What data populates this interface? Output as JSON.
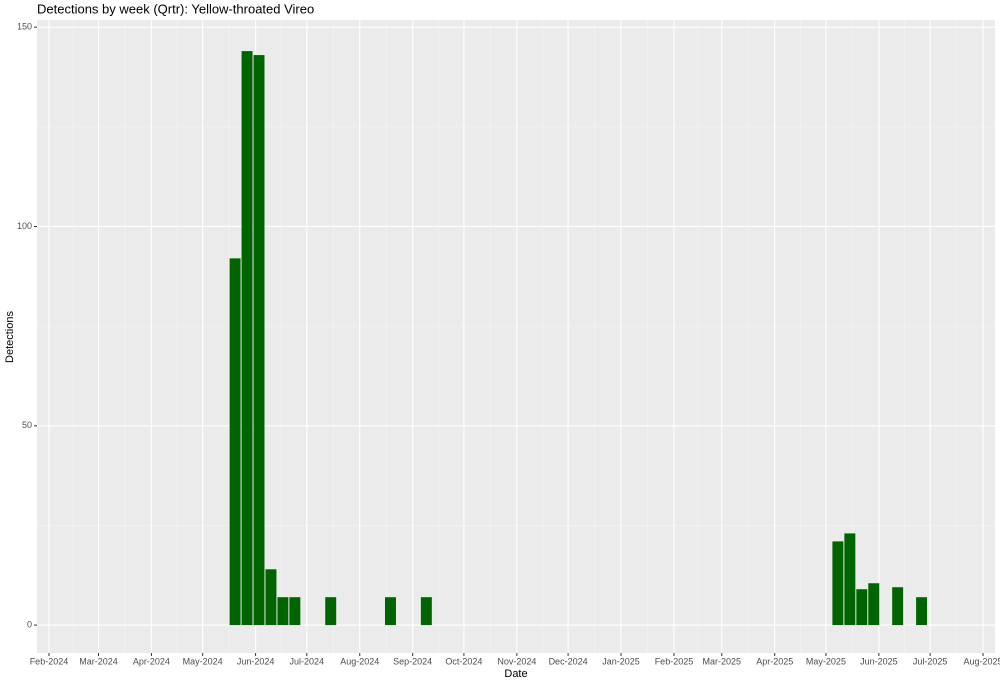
{
  "chart_data": {
    "type": "bar",
    "title": "Detections by week (Qrtr): Yellow-throated Vireo",
    "x_label": "Date",
    "y_label": "Detections",
    "color": "#006400",
    "grid": true,
    "x": [
      "2024-05-20",
      "2024-05-27",
      "2024-06-03",
      "2024-06-10",
      "2024-06-17",
      "2024-06-24",
      "2024-07-15",
      "2024-08-19",
      "2024-09-09",
      "2025-05-08",
      "2025-05-15",
      "2025-05-22",
      "2025-05-29",
      "2025-06-12",
      "2025-06-26"
    ],
    "values": [
      92,
      144,
      143,
      14,
      7,
      7,
      7,
      7,
      7,
      21,
      23,
      9,
      10.5,
      9.5,
      7
    ],
    "xlim": [
      "2024-01-25",
      "2025-08-08"
    ],
    "xticks": [
      {
        "value": "2024-02-01",
        "label": "Feb-2024"
      },
      {
        "value": "2024-03-01",
        "label": "Mar-2024"
      },
      {
        "value": "2024-04-01",
        "label": "Apr-2024"
      },
      {
        "value": "2024-05-01",
        "label": "May-2024"
      },
      {
        "value": "2024-06-01",
        "label": "Jun-2024"
      },
      {
        "value": "2024-07-01",
        "label": "Jul-2024"
      },
      {
        "value": "2024-08-01",
        "label": "Aug-2024"
      },
      {
        "value": "2024-09-01",
        "label": "Sep-2024"
      },
      {
        "value": "2024-10-01",
        "label": "Oct-2024"
      },
      {
        "value": "2024-11-01",
        "label": "Nov-2024"
      },
      {
        "value": "2024-12-01",
        "label": "Dec-2024"
      },
      {
        "value": "2025-01-01",
        "label": "Jan-2025"
      },
      {
        "value": "2025-02-01",
        "label": "Feb-2025"
      },
      {
        "value": "2025-03-01",
        "label": "Mar-2025"
      },
      {
        "value": "2025-04-01",
        "label": "Apr-2025"
      },
      {
        "value": "2025-05-01",
        "label": "May-2025"
      },
      {
        "value": "2025-06-01",
        "label": "Jun-2025"
      },
      {
        "value": "2025-07-01",
        "label": "Jul-2025"
      },
      {
        "value": "2025-08-01",
        "label": "Aug-2025"
      }
    ],
    "ylim": [
      -7,
      151.8
    ],
    "yticks": [
      0,
      50,
      100,
      150
    ]
  }
}
